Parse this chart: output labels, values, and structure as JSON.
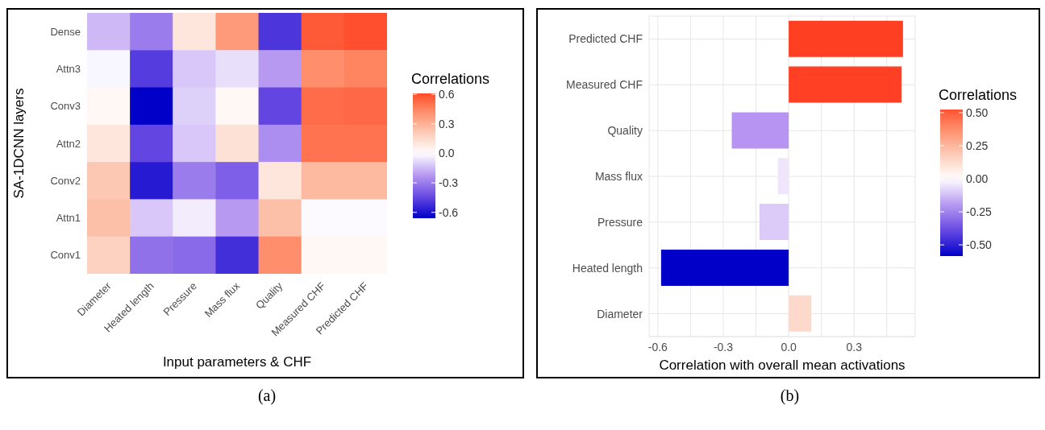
{
  "chart_data": [
    {
      "type": "heatmap",
      "xlabel": "Input parameters & CHF",
      "ylabel": "SA-1DCNN layers",
      "clabel": "Correlations",
      "categories": [
        "Diameter",
        "Heated length",
        "Pressure",
        "Mass flux",
        "Quality",
        "Measured CHF",
        "Predicted CHF"
      ],
      "y_categories": [
        "Dense",
        "Attn3",
        "Conv3",
        "Attn2",
        "Conv2",
        "Attn1",
        "Conv1"
      ],
      "cells": [
        [
          -0.15,
          -0.3,
          0.1,
          0.38,
          -0.5,
          0.57,
          0.6
        ],
        [
          -0.02,
          -0.48,
          -0.12,
          -0.07,
          -0.22,
          0.42,
          0.45
        ],
        [
          0.03,
          -0.66,
          -0.1,
          0.03,
          -0.45,
          0.52,
          0.53
        ],
        [
          0.1,
          -0.45,
          -0.12,
          0.12,
          -0.25,
          0.5,
          0.5
        ],
        [
          0.22,
          -0.58,
          -0.3,
          -0.38,
          0.1,
          0.27,
          0.27
        ],
        [
          0.25,
          -0.12,
          -0.04,
          -0.22,
          0.25,
          -0.01,
          -0.01
        ],
        [
          0.18,
          -0.33,
          -0.35,
          -0.52,
          0.42,
          0.03,
          0.03
        ]
      ],
      "clim": [
        -0.66,
        0.61
      ],
      "cticks": [
        -0.6,
        -0.3,
        {
          "value": 0,
          "label": "0.0"
        },
        0.3,
        0.6
      ],
      "annotations": [
        "(a)"
      ]
    },
    {
      "type": "bar",
      "orientation": "horizontal",
      "xlabel": "Correlation with overall mean activations",
      "clabel": "Correlations",
      "categories": [
        "Predicted CHF",
        "Measured CHF",
        "Quality",
        "Mass flux",
        "Pressure",
        "Heated length",
        "Diameter"
      ],
      "values": [
        0.524,
        0.518,
        -0.261,
        -0.05,
        -0.134,
        -0.585,
        0.104
      ],
      "colors": [
        "#ff3f22",
        "#ff4024",
        "#b894f2",
        "#f0e6fc",
        "#dccbf8",
        "#0000c8",
        "#fcd9cb"
      ],
      "xlim": [
        -0.64,
        0.58
      ],
      "xticks": [
        -0.6,
        {
          "value": -0.45,
          "label": null
        },
        -0.3,
        {
          "value": -0.15,
          "label": null
        },
        {
          "value": 0,
          "label": "0.0"
        },
        {
          "value": 0.15,
          "label": null
        },
        0.3,
        {
          "value": 0.45,
          "label": null
        }
      ],
      "grid": true,
      "clim": [
        -0.585,
        0.524
      ],
      "cticks": [
        {
          "value": 0.5,
          "label": "0.50"
        },
        {
          "value": 0.25,
          "label": "0.25"
        },
        {
          "value": 0,
          "label": "0.00"
        },
        {
          "value": -0.25,
          "label": "-0.25"
        },
        {
          "value": -0.5,
          "label": "-0.50"
        }
      ],
      "annotations": [
        "(b)"
      ]
    }
  ]
}
